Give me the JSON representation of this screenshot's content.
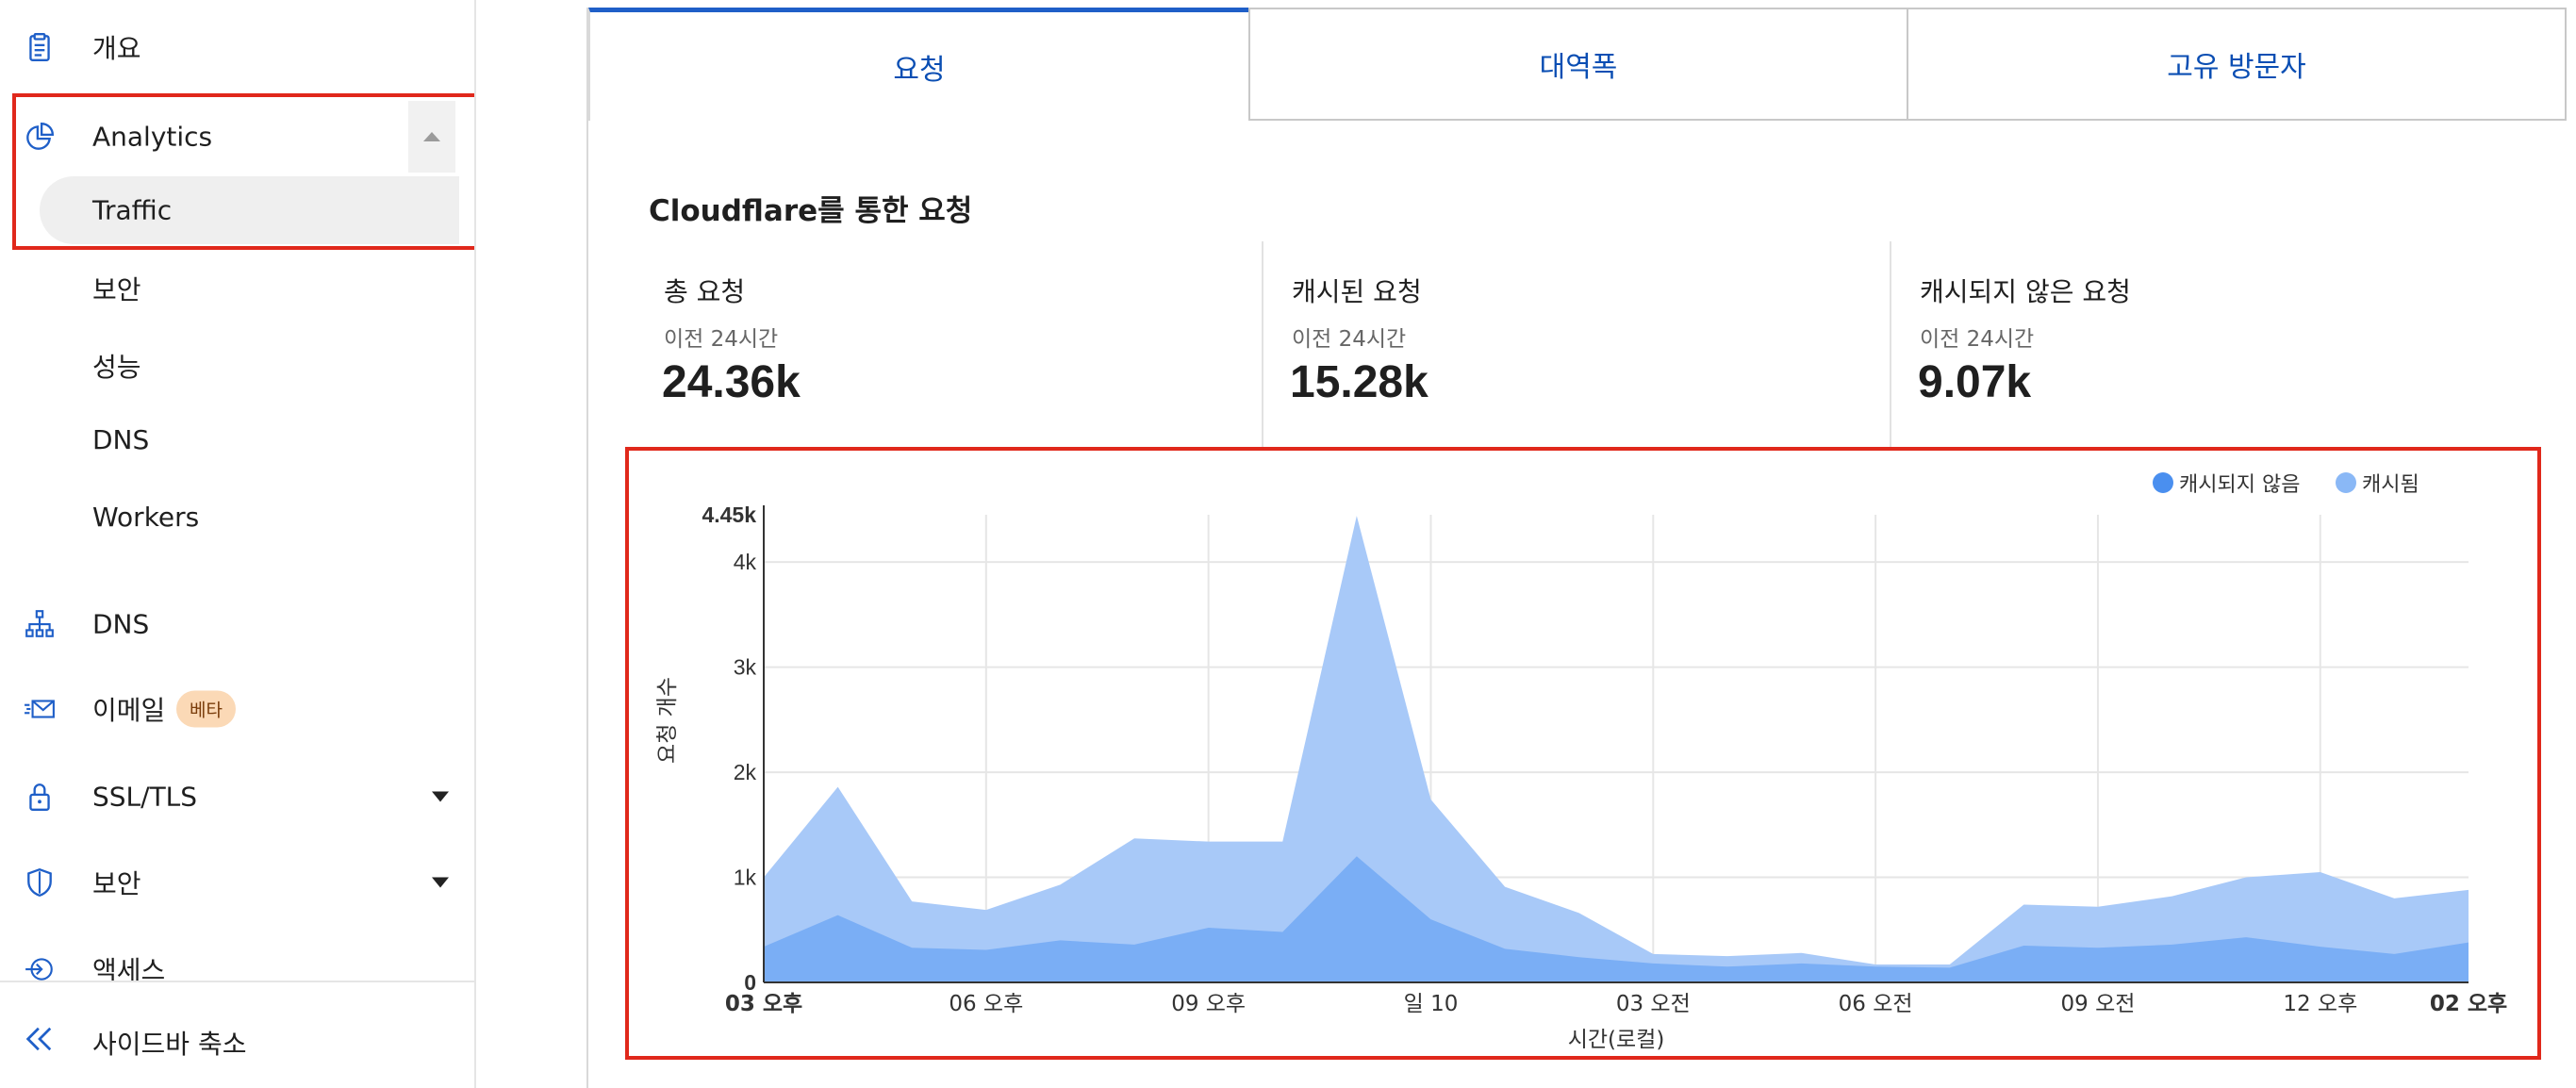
{
  "sidebar": {
    "overview": "개요",
    "analytics": "Analytics",
    "traffic": "Traffic",
    "sub_items": [
      "보안",
      "성능",
      "DNS",
      "Workers"
    ],
    "dns": "DNS",
    "email": "이메일",
    "email_badge": "베타",
    "ssl": "SSL/TLS",
    "security": "보안",
    "access": "액세스",
    "collapse": "사이드바 축소"
  },
  "tabs": [
    "요청",
    "대역폭",
    "고유 방문자"
  ],
  "section_title": "Cloudflare를 통한 요청",
  "stats": [
    {
      "name": "총 요청",
      "sub": "이전 24시간",
      "value": "24.36k"
    },
    {
      "name": "캐시된 요청",
      "sub": "이전 24시간",
      "value": "15.28k"
    },
    {
      "name": "캐시되지 않은 요청",
      "sub": "이전 24시간",
      "value": "9.07k"
    }
  ],
  "colors": {
    "uncached": "#7aaef5",
    "cached": "#a8c9f8",
    "uncached_dot": "#4a8fef",
    "cached_dot": "#8ab8f6",
    "accent": "#0a4eb3",
    "highlight": "#e0281b"
  },
  "chart_data": {
    "type": "area",
    "ylabel": "요청 개수",
    "xlabel": "시간(로컬)",
    "ylim": [
      0,
      4450
    ],
    "ymax_label": "4.45k",
    "y_ticks": [
      {
        "v": 0,
        "label": "0"
      },
      {
        "v": 1000,
        "label": "1k"
      },
      {
        "v": 2000,
        "label": "2k"
      },
      {
        "v": 3000,
        "label": "3k"
      },
      {
        "v": 4000,
        "label": "4k"
      }
    ],
    "x_ticks": [
      {
        "i": 0,
        "label": "03 오후",
        "bold": true
      },
      {
        "i": 3,
        "label": "06 오후",
        "bold": false
      },
      {
        "i": 6,
        "label": "09 오후",
        "bold": false
      },
      {
        "i": 9,
        "label": "일 10",
        "bold": false
      },
      {
        "i": 12,
        "label": "03 오전",
        "bold": false
      },
      {
        "i": 15,
        "label": "06 오전",
        "bold": false
      },
      {
        "i": 18,
        "label": "09 오전",
        "bold": false
      },
      {
        "i": 21,
        "label": "12 오후",
        "bold": false
      },
      {
        "i": 23,
        "label": "02 오후",
        "bold": true
      }
    ],
    "legend_position": "top-right",
    "grid": true,
    "series": [
      {
        "name": "캐시되지 않음",
        "values": [
          340,
          640,
          330,
          310,
          400,
          360,
          520,
          480,
          1200,
          600,
          320,
          240,
          180,
          150,
          180,
          150,
          140,
          350,
          330,
          360,
          430,
          340,
          270,
          380
        ]
      },
      {
        "name": "캐시됨",
        "values": [
          1000,
          1860,
          770,
          690,
          930,
          1370,
          1340,
          1340,
          4440,
          1740,
          910,
          660,
          270,
          250,
          280,
          170,
          170,
          740,
          720,
          820,
          1000,
          1050,
          800,
          880
        ]
      }
    ]
  }
}
